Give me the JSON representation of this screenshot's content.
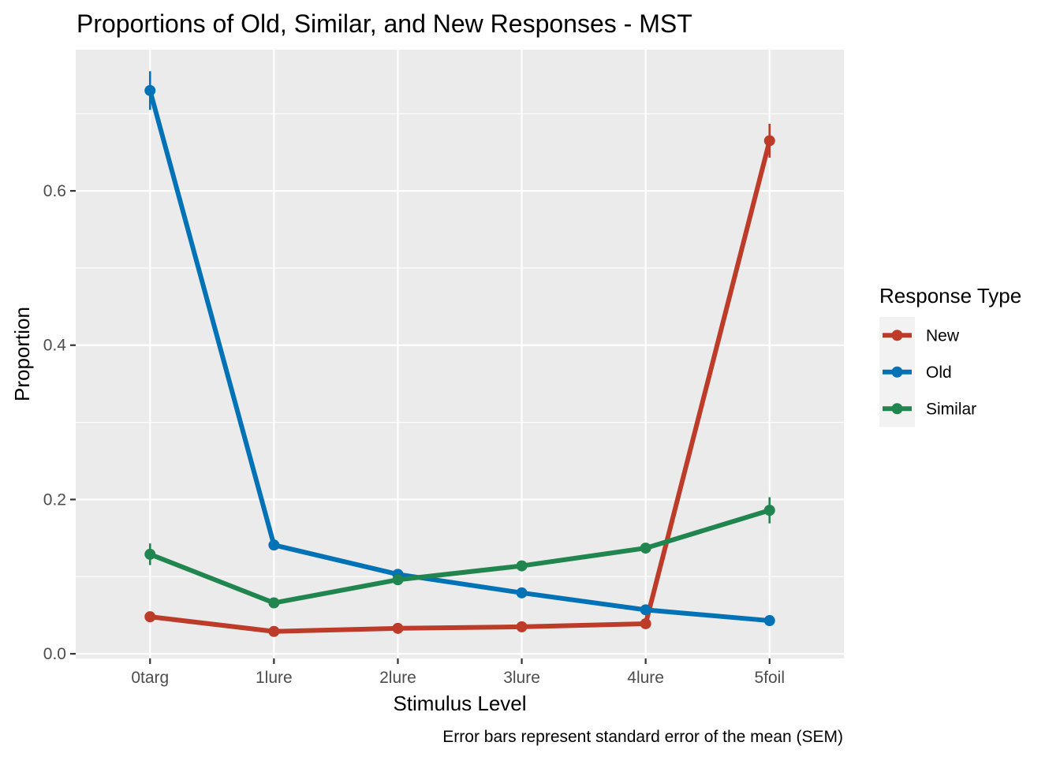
{
  "chart_data": {
    "type": "line",
    "title": "Proportions of Old, Similar, and New Responses - MST",
    "xlabel": "Stimulus Level",
    "ylabel": "Proportion",
    "caption": "Error bars represent standard error of the mean (SEM)",
    "categories": [
      "0targ",
      "1lure",
      "2lure",
      "3lure",
      "4lure",
      "5foil"
    ],
    "ylim": [
      -0.006,
      0.783
    ],
    "yticks": [
      0.0,
      0.2,
      0.4,
      0.6
    ],
    "ytick_labels": [
      "0.0",
      "0.2",
      "0.4",
      "0.6"
    ],
    "grid": true,
    "legend": {
      "title": "Response Type",
      "position": "right"
    },
    "series": [
      {
        "name": "New",
        "color": "#BC3C29",
        "values": [
          0.048,
          0.029,
          0.033,
          0.035,
          0.039,
          0.665
        ],
        "sem": [
          0.003,
          0.002,
          0.002,
          0.002,
          0.003,
          0.022
        ]
      },
      {
        "name": "Old",
        "color": "#0072B5",
        "values": [
          0.73,
          0.141,
          0.103,
          0.079,
          0.057,
          0.043
        ],
        "sem": [
          0.025,
          0.007,
          0.004,
          0.003,
          0.003,
          0.003
        ]
      },
      {
        "name": "Similar",
        "color": "#20854E",
        "values": [
          0.129,
          0.066,
          0.096,
          0.114,
          0.137,
          0.186
        ],
        "sem": [
          0.014,
          0.004,
          0.005,
          0.005,
          0.006,
          0.017
        ]
      }
    ]
  }
}
